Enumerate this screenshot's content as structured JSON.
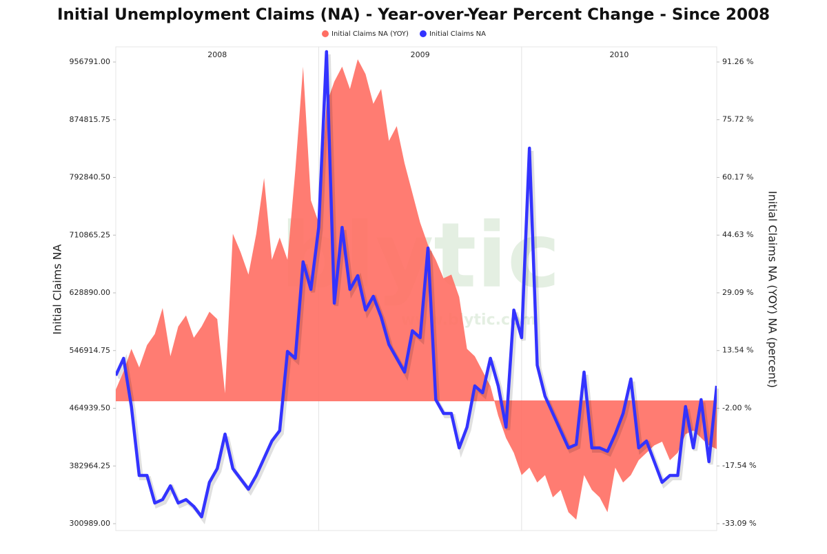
{
  "chart_data": {
    "type": "line-area",
    "title": "Initial Unemployment Claims (NA) - Year-over-Year Percent Change - Since 2008",
    "ylabel": "Initial Claims NA",
    "y2label": "Initial Claims NA (YOY) NA (percent)",
    "watermark": "blytic",
    "watermark_sub": "www.blytic.com",
    "categories": [
      "2008",
      null,
      null,
      null,
      null,
      null,
      null,
      null,
      null,
      null,
      null,
      null,
      null,
      null,
      null,
      null,
      null,
      null,
      null,
      null,
      null,
      null,
      null,
      null,
      null,
      null,
      "2009",
      null,
      null,
      null,
      null,
      null,
      null,
      null,
      null,
      null,
      null,
      null,
      null,
      null,
      null,
      null,
      null,
      null,
      null,
      null,
      null,
      null,
      null,
      null,
      null,
      null,
      "2010",
      null,
      null,
      null,
      null,
      null,
      null,
      null,
      null,
      null,
      null,
      null,
      null,
      null,
      null,
      null,
      null,
      null,
      null,
      null,
      null,
      null,
      null,
      null,
      null,
      null
    ],
    "series": [
      {
        "name": "Initial Claims NA (YOY)",
        "color": "#ff6e63",
        "axis": "y2",
        "kind": "area",
        "values": [
          3,
          8,
          14,
          9,
          15,
          18,
          25,
          12,
          20,
          23,
          17,
          20,
          24,
          22,
          2,
          45,
          40,
          34,
          45,
          60,
          38,
          44,
          38,
          62,
          90,
          54,
          48,
          80,
          86,
          90,
          84,
          92,
          88,
          80,
          84,
          70,
          74,
          64,
          56,
          48,
          42,
          38,
          33,
          34,
          28,
          14,
          12,
          8,
          4,
          -4,
          -10,
          -14,
          -20,
          -18,
          -22,
          -20,
          -26,
          -24,
          -30,
          -32,
          -20,
          -24,
          -26,
          -30,
          -18,
          -22,
          -20,
          -16,
          -14,
          -12,
          -11,
          -16,
          -14,
          -9,
          -8,
          -10,
          -12,
          -13
        ]
      },
      {
        "name": "Initial Claims NA",
        "color": "#3333ff",
        "axis": "y",
        "kind": "line",
        "values": [
          511431,
          535901,
          467385,
          369505,
          369505,
          330353,
          335247,
          354823,
          330353,
          335247,
          325459,
          310777,
          359717,
          379293,
          428233,
          379293,
          364611,
          349929,
          369505,
          393975,
          418445,
          433127,
          545689,
          535901,
          672933,
          633781,
          721873,
          971467,
          614205,
          721873,
          633781,
          653357,
          604417,
          623993,
          594629,
          555477,
          535901,
          516325,
          575053,
          565265,
          692509,
          477173,
          457597,
          457597,
          408657,
          438021,
          496749,
          486961,
          535901,
          496749,
          438021,
          604417,
          565265,
          834435,
          526113,
          482067,
          457597,
          433127,
          408657,
          413551,
          516325,
          408657,
          408657,
          403763,
          428233,
          457597,
          506537,
          408657,
          418445,
          389081,
          359717,
          369505,
          369505,
          467385,
          408657,
          477173,
          389081,
          496749
        ]
      }
    ],
    "ylim": [
      291201,
      978325
    ],
    "yticks": [
      {
        "value": 300989,
        "label": "300989.00"
      },
      {
        "value": 382964.25,
        "label": "382964.25"
      },
      {
        "value": 464939.5,
        "label": "464939.50"
      },
      {
        "value": 546914.75,
        "label": "546914.75"
      },
      {
        "value": 628890,
        "label": "628890.00"
      },
      {
        "value": 710865.25,
        "label": "710865.25"
      },
      {
        "value": 792840.5,
        "label": "792840.50"
      },
      {
        "value": 874815.75,
        "label": "874815.75"
      },
      {
        "value": 956791,
        "label": "956791.00"
      }
    ],
    "y2lim": [
      -34.95,
      95.34
    ],
    "y2ticks": [
      {
        "value": -33.09,
        "label": "-33.09 %"
      },
      {
        "value": -17.54,
        "label": "-17.54 %"
      },
      {
        "value": -2,
        "label": "-2.00 %"
      },
      {
        "value": 13.54,
        "label": "13.54 %"
      },
      {
        "value": 29.09,
        "label": "29.09 %"
      },
      {
        "value": 44.63,
        "label": "44.63 %"
      },
      {
        "value": 60.17,
        "label": "60.17 %"
      },
      {
        "value": 75.72,
        "label": "75.72 %"
      },
      {
        "value": 91.26,
        "label": "91.26 %"
      }
    ]
  }
}
